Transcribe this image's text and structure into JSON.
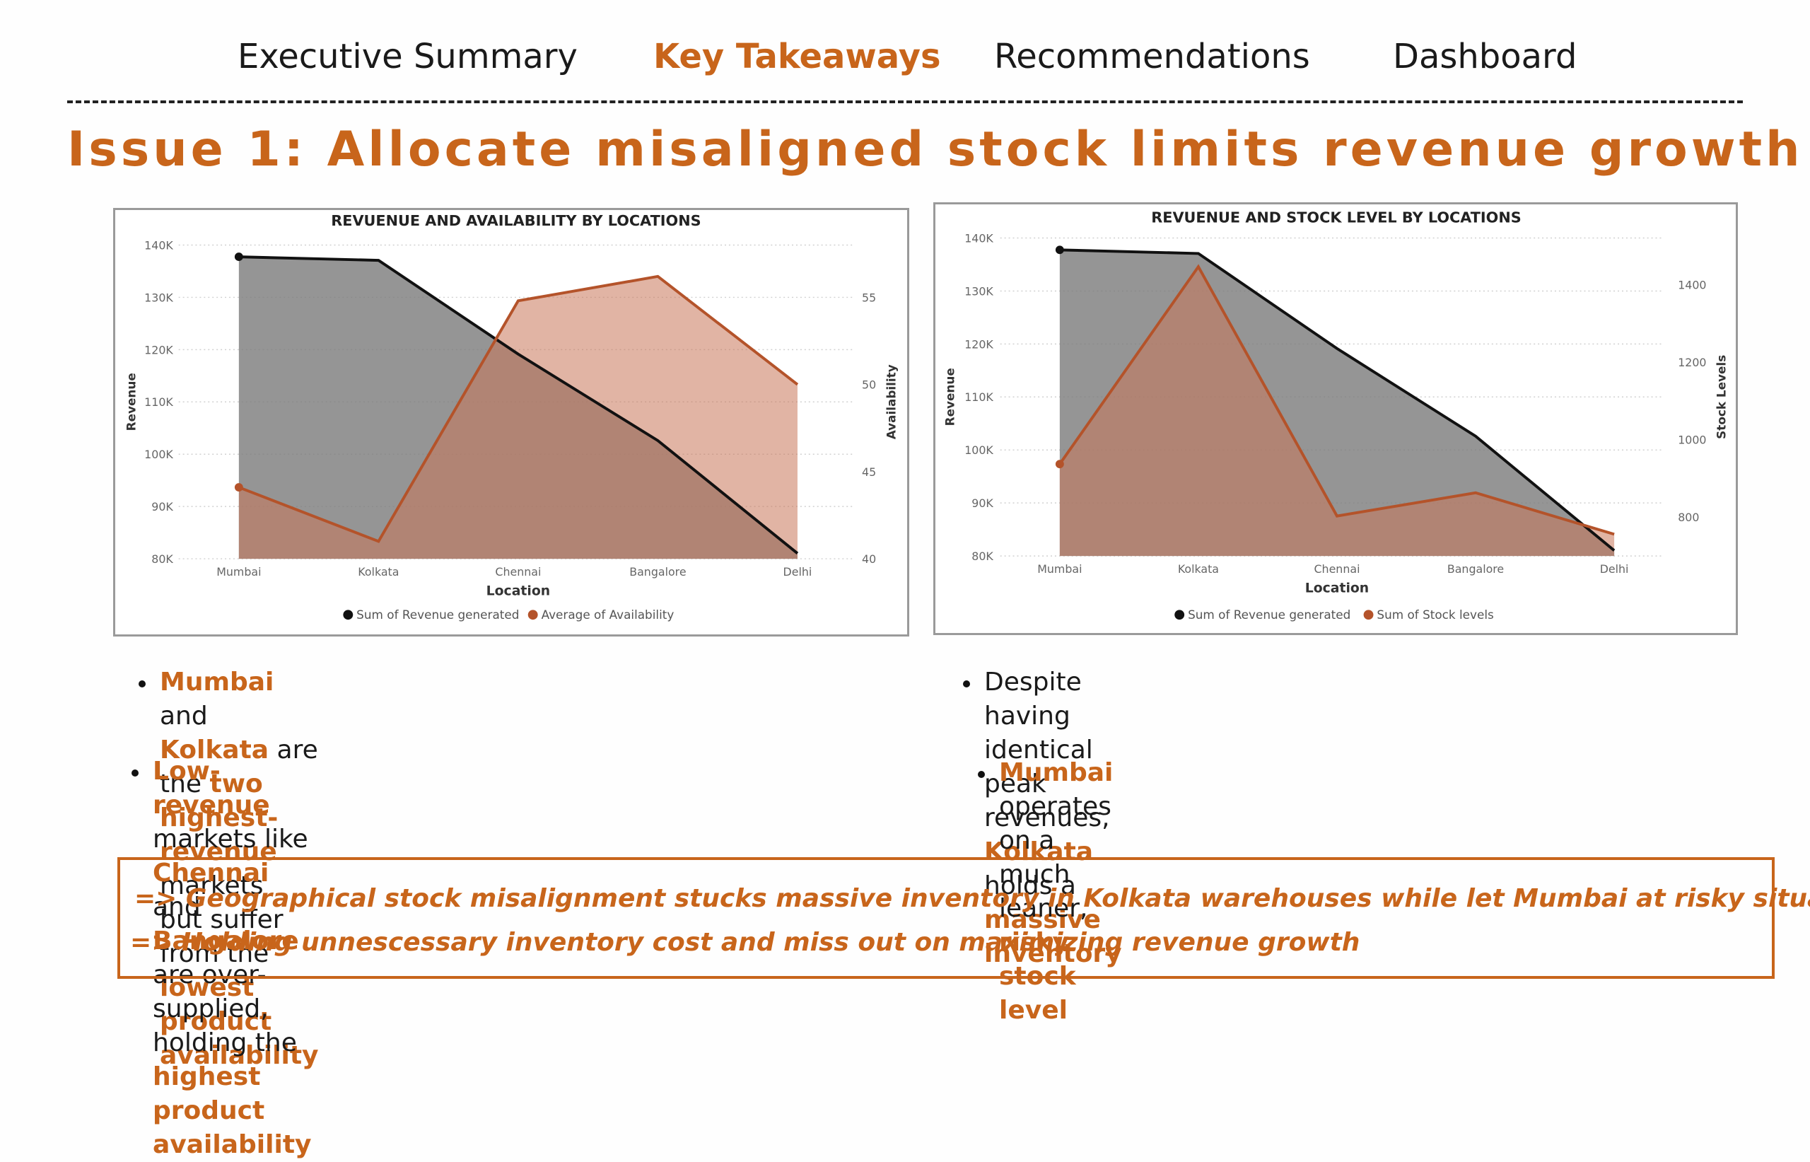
{
  "nav": {
    "items": [
      {
        "label": "Executive Summary",
        "active": false
      },
      {
        "label": "Key Takeaways",
        "active": true
      },
      {
        "label": "Recommendations",
        "active": false
      },
      {
        "label": "Dashboard",
        "active": false
      }
    ]
  },
  "page_title": "Issue 1: Allocate misaligned stock limits revenue growth",
  "colors": {
    "accent": "#c8651b",
    "revenue_fill": "#7a7a7a",
    "revenue_line": "#111111",
    "secondary_line": "#b4532a",
    "secondary_fill": "#c8765a"
  },
  "chart_data": [
    {
      "type": "area",
      "title": "REVUENUE AND AVAILABILITY BY LOCATIONS",
      "xlabel": "Location",
      "ylabel": "Revenue",
      "y2label": "Availability",
      "categories": [
        "Mumbai",
        "Kolkata",
        "Chennai",
        "Bangalore",
        "Delhi"
      ],
      "ylim": [
        80000,
        140000
      ],
      "y2lim": [
        40,
        58
      ],
      "yticks": [
        "140K",
        "130K",
        "120K",
        "110K",
        "100K",
        "90K",
        "80K"
      ],
      "y2ticks": [
        "55",
        "50",
        "45",
        "40"
      ],
      "grid": true,
      "legend": "bottom",
      "series": [
        {
          "name": "Sum of Revenue generated",
          "axis": "left",
          "values": [
            137755,
            137077,
            119142,
            102601,
            81027
          ]
        },
        {
          "name": "Average of Availability",
          "axis": "right",
          "values": [
            44.1,
            41.0,
            54.8,
            56.2,
            50.0
          ]
        }
      ]
    },
    {
      "type": "area",
      "title": "REVUENUE AND STOCK LEVEL BY LOCATIONS",
      "xlabel": "Location",
      "ylabel": "Revenue",
      "y2label": "Stock Levels",
      "categories": [
        "Mumbai",
        "Kolkata",
        "Chennai",
        "Bangalore",
        "Delhi"
      ],
      "ylim": [
        80000,
        140000
      ],
      "y2lim": [
        700,
        1520
      ],
      "yticks": [
        "140K",
        "130K",
        "120K",
        "110K",
        "100K",
        "90K",
        "80K"
      ],
      "y2ticks": [
        "1400",
        "1200",
        "1000",
        "800"
      ],
      "grid": true,
      "legend": "bottom",
      "series": [
        {
          "name": "Sum of Revenue generated",
          "axis": "left",
          "values": [
            137755,
            137077,
            119142,
            102601,
            81027
          ]
        },
        {
          "name": "Sum of Stock levels",
          "axis": "right",
          "values": [
            937,
            1446,
            803,
            863,
            756
          ]
        }
      ]
    }
  ],
  "takeaways_left": [
    [
      {
        "t": "Mumbai",
        "h": true
      },
      {
        "t": " and ",
        "h": false
      },
      {
        "t": "Kolkata",
        "h": true
      },
      {
        "t": " are the ",
        "h": false
      },
      {
        "t": "two highest-revenue",
        "h": true
      },
      {
        "t": " markets",
        "h": false
      },
      {
        "br": true
      },
      {
        "t": "but suffer from the ",
        "h": false
      },
      {
        "t": "lowest product availability",
        "h": true
      }
    ],
    [
      {
        "t": "Low-revenue",
        "h": true
      },
      {
        "t": " markets like ",
        "h": false
      },
      {
        "t": "Chennai",
        "h": true
      },
      {
        "t": " and ",
        "h": false
      },
      {
        "t": "Bangalore",
        "h": true
      },
      {
        "t": " are over-",
        "h": false
      },
      {
        "br": true
      },
      {
        "t": "supplied, holding the ",
        "h": false
      },
      {
        "t": "highest product availability",
        "h": true
      }
    ]
  ],
  "takeaways_right": [
    [
      {
        "t": "Despite having identical peak revenues, ",
        "h": false
      },
      {
        "t": "Kolkata",
        "h": true
      },
      {
        "t": " holds a",
        "h": false
      },
      {
        "br": true
      },
      {
        "t": "massive inventory",
        "h": true
      }
    ],
    [
      {
        "t": "Mumbai",
        "h": true
      },
      {
        "t": " operates on a much leaner, ",
        "h": false
      },
      {
        "t": "risky stock level",
        "h": true
      }
    ]
  ],
  "conclusion": {
    "line1": "=> Geographical stock misalignment stucks massive inventory in Kolkata warehouses while let Mumbai at risky situation",
    "line2": "=> Holding unnescessary inventory cost and miss out on maximizing revenue growth"
  }
}
